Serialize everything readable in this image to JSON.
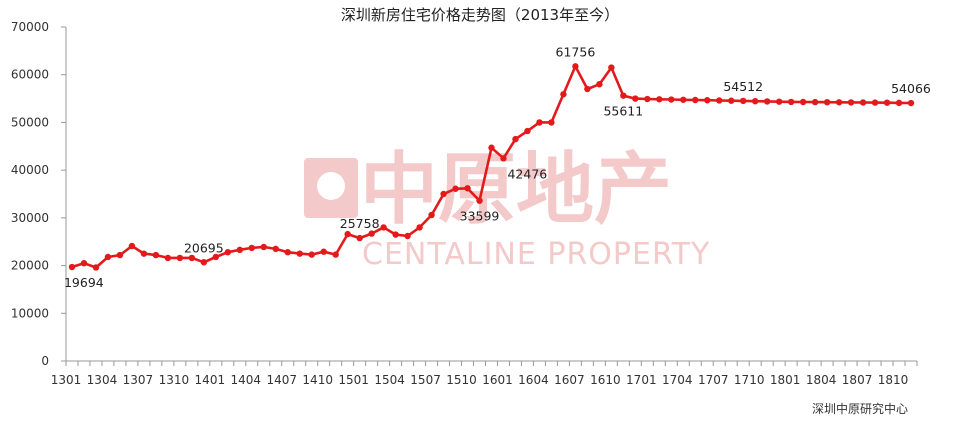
{
  "chart_data": {
    "type": "line",
    "title": "深圳新房住宅价格走势图（2013年至今）",
    "source": "深圳中原研究中心",
    "watermark": {
      "cn": "中原地产",
      "en": "CENTALINE PROPERTY"
    },
    "line_color": "#e31a1c",
    "ylim": [
      0,
      70000
    ],
    "yticks": [
      0,
      10000,
      20000,
      30000,
      40000,
      50000,
      60000,
      70000
    ],
    "xtick_labels": [
      "1301",
      "1304",
      "1307",
      "1310",
      "1401",
      "1404",
      "1407",
      "1410",
      "1501",
      "1504",
      "1507",
      "1510",
      "1601",
      "1604",
      "1607",
      "1610",
      "1701",
      "1704",
      "1707",
      "1710",
      "1801",
      "1804",
      "1807",
      "1810"
    ],
    "x": [
      "1301",
      "1302",
      "1303",
      "1304",
      "1305",
      "1306",
      "1307",
      "1308",
      "1309",
      "1310",
      "1311",
      "1312",
      "1401",
      "1402",
      "1403",
      "1404",
      "1405",
      "1406",
      "1407",
      "1408",
      "1409",
      "1410",
      "1411",
      "1412",
      "1501",
      "1502",
      "1503",
      "1504",
      "1505",
      "1506",
      "1507",
      "1508",
      "1509",
      "1510",
      "1511",
      "1512",
      "1601",
      "1602",
      "1603",
      "1604",
      "1605",
      "1606",
      "1607",
      "1608",
      "1609",
      "1610",
      "1611",
      "1612",
      "1701",
      "1702",
      "1703",
      "1704",
      "1705",
      "1706",
      "1707",
      "1708",
      "1709",
      "1710",
      "1711",
      "1712",
      "1801",
      "1802",
      "1803",
      "1804",
      "1805",
      "1806",
      "1807",
      "1808",
      "1809",
      "1810",
      "1811"
    ],
    "values": [
      19694,
      20500,
      19600,
      21800,
      22200,
      24100,
      22500,
      22200,
      21600,
      21600,
      21600,
      20695,
      21800,
      22800,
      23300,
      23700,
      23900,
      23500,
      22800,
      22500,
      22300,
      22900,
      22300,
      26600,
      25758,
      26700,
      28000,
      26500,
      26200,
      28000,
      30600,
      35000,
      36100,
      36200,
      33599,
      44700,
      42476,
      46500,
      48200,
      50000,
      50000,
      55900,
      61756,
      57000,
      58000,
      61500,
      55611,
      55000,
      54900,
      54850,
      54800,
      54750,
      54700,
      54650,
      54600,
      54550,
      54512,
      54450,
      54400,
      54350,
      54300,
      54280,
      54260,
      54240,
      54220,
      54200,
      54180,
      54160,
      54140,
      54100,
      54066
    ],
    "data_labels": [
      {
        "i": 0,
        "text": "19694",
        "pos": "below"
      },
      {
        "i": 11,
        "text": "20695",
        "pos": "above"
      },
      {
        "i": 24,
        "text": "25758",
        "pos": "above"
      },
      {
        "i": 34,
        "text": "33599",
        "pos": "below"
      },
      {
        "i": 36,
        "text": "42476",
        "pos": "below-right"
      },
      {
        "i": 42,
        "text": "61756",
        "pos": "above"
      },
      {
        "i": 46,
        "text": "55611",
        "pos": "below"
      },
      {
        "i": 56,
        "text": "54512",
        "pos": "above"
      },
      {
        "i": 70,
        "text": "54066",
        "pos": "above"
      }
    ]
  }
}
